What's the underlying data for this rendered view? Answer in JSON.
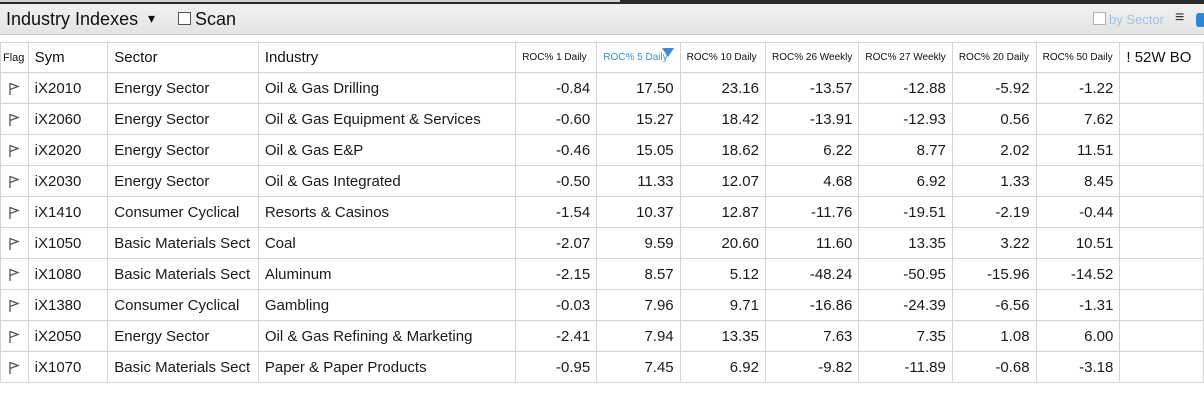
{
  "titlebar": {
    "title": "Industry Indexes",
    "caret": "▾",
    "scan_label": "Scan",
    "by_sector_label": "by Sector",
    "menu_icon": "≡"
  },
  "table": {
    "headers": [
      "Flag",
      "Sym",
      "Sector",
      "Industry",
      "ROC% 1 Daily",
      "ROC% 5 Daily",
      "ROC% 10 Daily",
      "ROC% 26 Weekly",
      "ROC% 27 Weekly",
      "ROC% 20 Daily",
      "ROC% 50 Daily",
      "! 52W BO"
    ],
    "sorted_column": "ROC% 5 Daily",
    "rows": [
      {
        "sym": "iX2010",
        "sector": "Energy Sector",
        "industry": "Oil & Gas Drilling",
        "vals": [
          "-0.84",
          "17.50",
          "23.16",
          "-13.57",
          "-12.88",
          "-5.92",
          "-1.22"
        ]
      },
      {
        "sym": "iX2060",
        "sector": "Energy Sector",
        "industry": "Oil & Gas Equipment & Services",
        "vals": [
          "-0.60",
          "15.27",
          "18.42",
          "-13.91",
          "-12.93",
          "0.56",
          "7.62"
        ]
      },
      {
        "sym": "iX2020",
        "sector": "Energy Sector",
        "industry": "Oil & Gas E&P",
        "vals": [
          "-0.46",
          "15.05",
          "18.62",
          "6.22",
          "8.77",
          "2.02",
          "11.51"
        ]
      },
      {
        "sym": "iX2030",
        "sector": "Energy Sector",
        "industry": "Oil & Gas Integrated",
        "vals": [
          "-0.50",
          "11.33",
          "12.07",
          "4.68",
          "6.92",
          "1.33",
          "8.45"
        ]
      },
      {
        "sym": "iX1410",
        "sector": "Consumer Cyclical",
        "industry": "Resorts & Casinos",
        "vals": [
          "-1.54",
          "10.37",
          "12.87",
          "-11.76",
          "-19.51",
          "-2.19",
          "-0.44"
        ]
      },
      {
        "sym": "iX1050",
        "sector": "Basic Materials Sect",
        "industry": "Coal",
        "vals": [
          "-2.07",
          "9.59",
          "20.60",
          "11.60",
          "13.35",
          "3.22",
          "10.51"
        ]
      },
      {
        "sym": "iX1080",
        "sector": "Basic Materials Sect",
        "industry": "Aluminum",
        "vals": [
          "-2.15",
          "8.57",
          "5.12",
          "-48.24",
          "-50.95",
          "-15.96",
          "-14.52"
        ]
      },
      {
        "sym": "iX1380",
        "sector": "Consumer Cyclical",
        "industry": "Gambling",
        "vals": [
          "-0.03",
          "7.96",
          "9.71",
          "-16.86",
          "-24.39",
          "-6.56",
          "-1.31"
        ]
      },
      {
        "sym": "iX2050",
        "sector": "Energy Sector",
        "industry": "Oil & Gas Refining & Marketing",
        "vals": [
          "-2.41",
          "7.94",
          "13.35",
          "7.63",
          "7.35",
          "1.08",
          "6.00"
        ]
      },
      {
        "sym": "iX1070",
        "sector": "Basic Materials Sect",
        "industry": "Paper & Paper Products",
        "vals": [
          "-0.95",
          "7.45",
          "6.92",
          "-9.82",
          "-11.89",
          "-0.68",
          "-3.18"
        ]
      }
    ]
  },
  "colors": {
    "accent": "#3b8ad5",
    "by_sector": "#9ec3e6",
    "grid": "#d4d4d4"
  },
  "icons": {
    "flag": "flag-icon",
    "sort": "sort-desc-icon",
    "menu": "menu-icon"
  }
}
